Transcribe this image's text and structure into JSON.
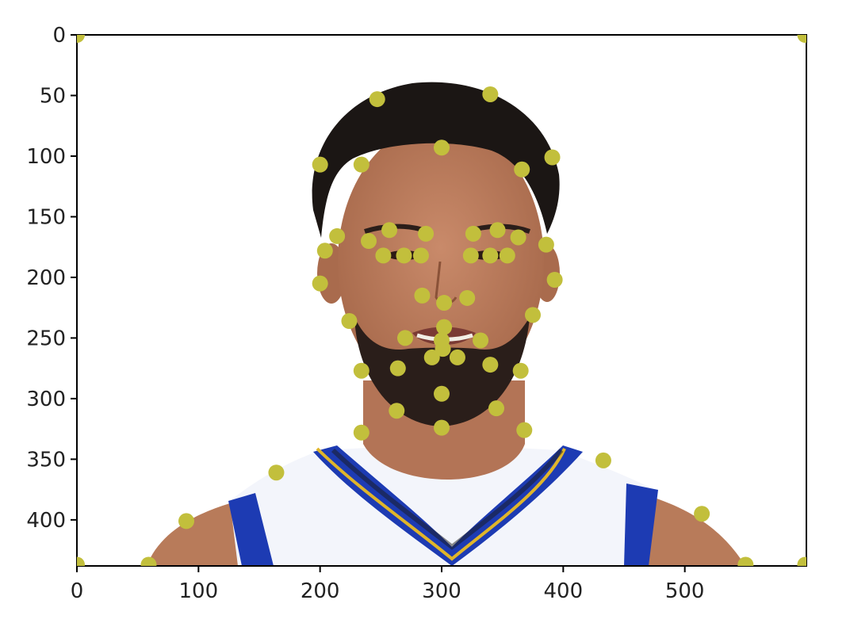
{
  "chart_data": {
    "type": "scatter",
    "background_image": "photo of a man's head and shoulders wearing a white, blue and yellow basketball jersey",
    "xlim": [
      0,
      600
    ],
    "ylim": [
      438,
      0
    ],
    "y_inverted": true,
    "x_ticks": [
      0,
      100,
      200,
      300,
      400,
      500
    ],
    "y_ticks": [
      0,
      50,
      100,
      150,
      200,
      250,
      300,
      350,
      400
    ],
    "x_tick_labels": [
      "0",
      "100",
      "200",
      "300",
      "400",
      "500"
    ],
    "y_tick_labels": [
      "0",
      "50",
      "100",
      "150",
      "200",
      "250",
      "300",
      "350",
      "400"
    ],
    "marker_color": "#c2bf3c",
    "grid": false,
    "points": [
      {
        "x": 0,
        "y": 0
      },
      {
        "x": 599,
        "y": 0
      },
      {
        "x": 0,
        "y": 437
      },
      {
        "x": 599,
        "y": 437
      },
      {
        "x": 59,
        "y": 437
      },
      {
        "x": 550,
        "y": 437
      },
      {
        "x": 247,
        "y": 53
      },
      {
        "x": 340,
        "y": 49
      },
      {
        "x": 300,
        "y": 93
      },
      {
        "x": 200,
        "y": 107
      },
      {
        "x": 234,
        "y": 107
      },
      {
        "x": 366,
        "y": 111
      },
      {
        "x": 391,
        "y": 101
      },
      {
        "x": 214,
        "y": 166
      },
      {
        "x": 240,
        "y": 170
      },
      {
        "x": 257,
        "y": 161
      },
      {
        "x": 287,
        "y": 164
      },
      {
        "x": 326,
        "y": 164
      },
      {
        "x": 346,
        "y": 161
      },
      {
        "x": 363,
        "y": 167
      },
      {
        "x": 386,
        "y": 173
      },
      {
        "x": 204,
        "y": 178
      },
      {
        "x": 252,
        "y": 182
      },
      {
        "x": 269,
        "y": 182
      },
      {
        "x": 283,
        "y": 182
      },
      {
        "x": 324,
        "y": 182
      },
      {
        "x": 340,
        "y": 182
      },
      {
        "x": 354,
        "y": 182
      },
      {
        "x": 200,
        "y": 205
      },
      {
        "x": 393,
        "y": 202
      },
      {
        "x": 284,
        "y": 215
      },
      {
        "x": 302,
        "y": 221
      },
      {
        "x": 321,
        "y": 217
      },
      {
        "x": 224,
        "y": 236
      },
      {
        "x": 375,
        "y": 231
      },
      {
        "x": 302,
        "y": 241
      },
      {
        "x": 270,
        "y": 250
      },
      {
        "x": 300,
        "y": 252
      },
      {
        "x": 332,
        "y": 252
      },
      {
        "x": 301,
        "y": 259
      },
      {
        "x": 292,
        "y": 266
      },
      {
        "x": 313,
        "y": 266
      },
      {
        "x": 234,
        "y": 277
      },
      {
        "x": 264,
        "y": 275
      },
      {
        "x": 340,
        "y": 272
      },
      {
        "x": 365,
        "y": 277
      },
      {
        "x": 300,
        "y": 296
      },
      {
        "x": 263,
        "y": 310
      },
      {
        "x": 345,
        "y": 308
      },
      {
        "x": 300,
        "y": 324
      },
      {
        "x": 234,
        "y": 328
      },
      {
        "x": 368,
        "y": 326
      },
      {
        "x": 433,
        "y": 351
      },
      {
        "x": 164,
        "y": 361
      },
      {
        "x": 90,
        "y": 401
      },
      {
        "x": 514,
        "y": 395
      }
    ]
  }
}
